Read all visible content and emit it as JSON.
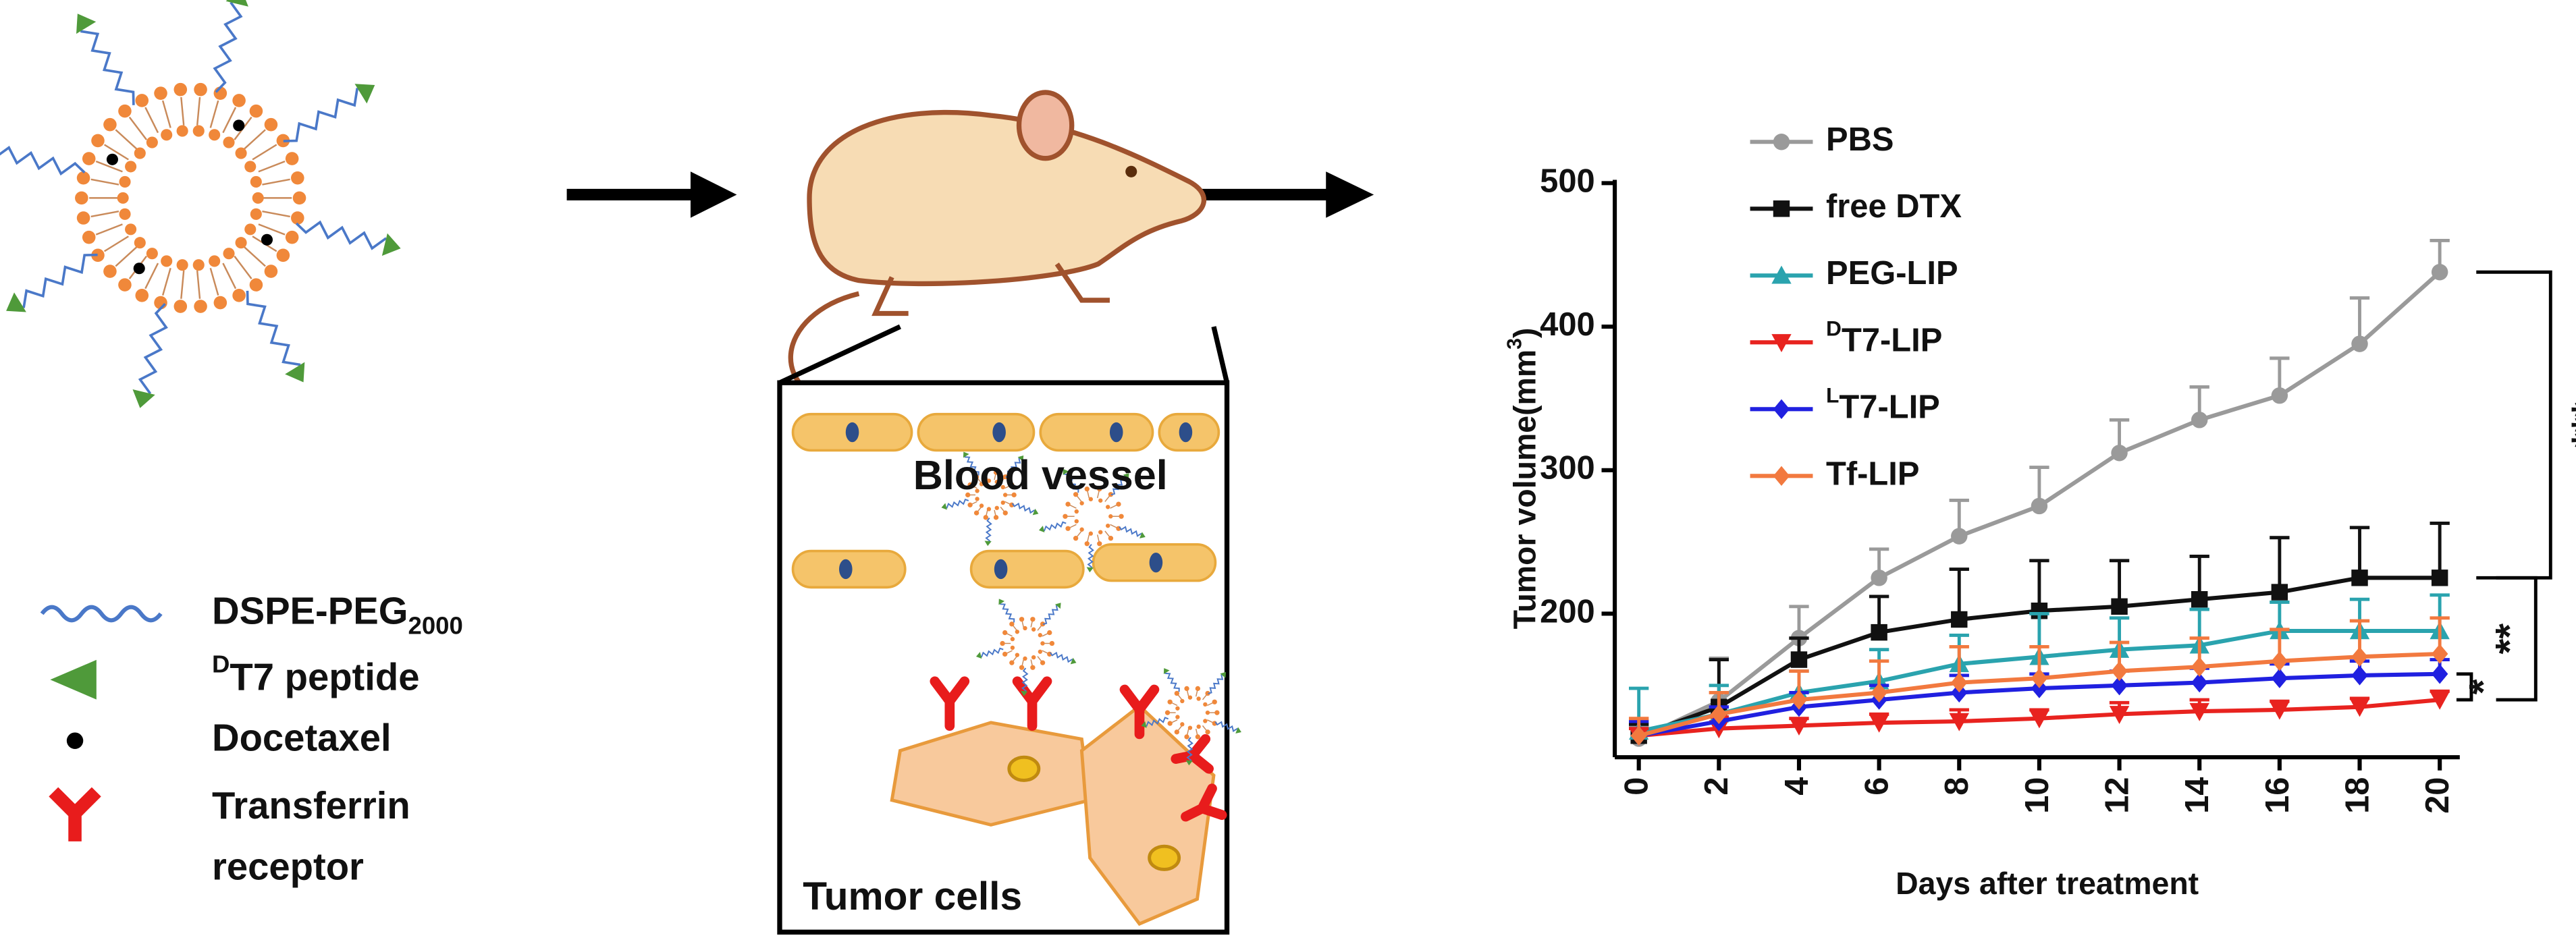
{
  "diagram": {
    "legend": [
      {
        "label": "DSPE-PEG2000"
      },
      {
        "label": "DT7 peptide"
      },
      {
        "label": "Docetaxel"
      },
      {
        "lines": [
          "Transferrin",
          "receptor"
        ]
      }
    ],
    "box_labels": {
      "vessel": "Blood vessel",
      "cells": "Tumor cells"
    }
  },
  "chart_data": {
    "type": "line",
    "xlabel": "Days after treatment",
    "ylabel": "Tumor volume(mm3)",
    "x": [
      0,
      2,
      4,
      6,
      8,
      10,
      12,
      14,
      16,
      18,
      20
    ],
    "xlim": [
      -0.6,
      20.5
    ],
    "xticks": [
      0,
      2,
      4,
      6,
      8,
      10,
      12,
      14,
      16,
      18,
      20
    ],
    "ylim": [
      100,
      500
    ],
    "yticks": [
      200,
      300,
      400,
      500
    ],
    "legend": "upper left",
    "series": [
      {
        "name": "PBS",
        "color": "#9a9a9a",
        "marker": "circle",
        "values": [
          113,
          139,
          183,
          225,
          254,
          275,
          312,
          335,
          352,
          388,
          438
        ],
        "errors": [
          8,
          30,
          22,
          20,
          25,
          27,
          23,
          23,
          26,
          32,
          22
        ]
      },
      {
        "name": "free DTX",
        "color": "#111111",
        "marker": "square",
        "values": [
          115,
          135,
          168,
          187,
          196,
          202,
          205,
          210,
          215,
          225,
          225
        ],
        "errors": [
          8,
          33,
          15,
          25,
          35,
          35,
          32,
          30,
          38,
          35,
          38
        ]
      },
      {
        "name": "PEG-LIP",
        "color": "#2aa3ae",
        "marker": "triangle-up",
        "values": [
          118,
          130,
          145,
          153,
          165,
          170,
          175,
          178,
          188,
          188,
          188
        ],
        "errors": [
          30,
          20,
          15,
          22,
          20,
          30,
          22,
          25,
          20,
          22,
          25
        ]
      },
      {
        "name": "DT7-LIP",
        "color": "#e8231f",
        "marker": "triangle-down",
        "values": [
          115,
          120,
          122,
          124,
          125,
          127,
          130,
          132,
          133,
          135,
          140
        ],
        "errors": [
          5,
          8,
          5,
          6,
          8,
          6,
          8,
          8,
          6,
          6,
          6
        ]
      },
      {
        "name": "LT7-LIP",
        "color": "#2020e0",
        "marker": "diamond",
        "values": [
          115,
          125,
          135,
          140,
          145,
          148,
          150,
          152,
          155,
          157,
          158
        ],
        "errors": [
          10,
          10,
          10,
          10,
          12,
          10,
          10,
          10,
          10,
          10,
          10
        ]
      },
      {
        "name": "Tf-LIP",
        "color": "#f2793f",
        "marker": "diamond",
        "values": [
          115,
          130,
          140,
          145,
          152,
          155,
          160,
          163,
          167,
          170,
          172
        ],
        "errors": [
          12,
          15,
          20,
          22,
          25,
          22,
          20,
          20,
          22,
          25,
          25
        ]
      }
    ],
    "annotations": [
      {
        "label": "***",
        "between": [
          0,
          1
        ]
      },
      {
        "label": "**",
        "between": [
          1,
          3
        ]
      },
      {
        "label": "*",
        "between": [
          4,
          3
        ]
      }
    ]
  }
}
